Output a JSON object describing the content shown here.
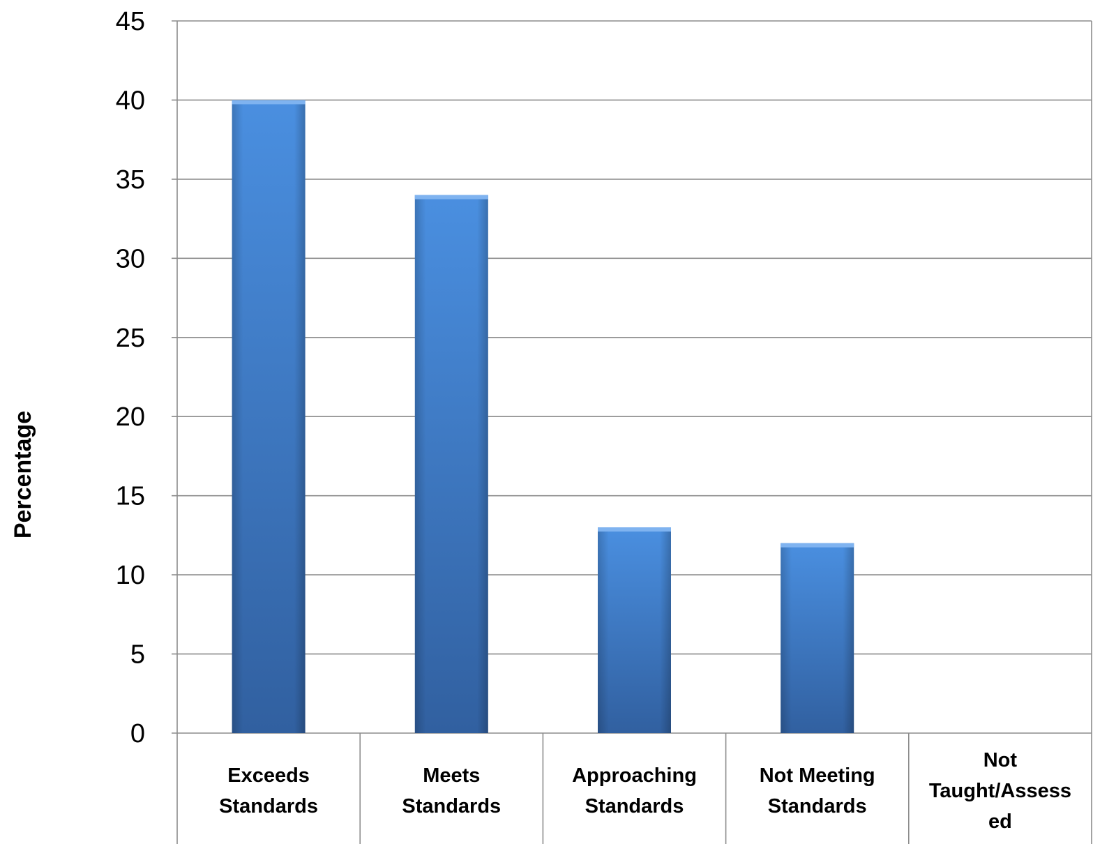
{
  "chart_data": {
    "type": "bar",
    "title": "",
    "xlabel": "",
    "ylabel": "Percentage",
    "ylim": [
      0,
      45
    ],
    "yticks": [
      "0",
      "5",
      "10",
      "15",
      "20",
      "25",
      "30",
      "35",
      "40",
      "45"
    ],
    "grid": true,
    "categories": [
      [
        "Exceeds",
        "Standards"
      ],
      [
        "Meets",
        "Standards"
      ],
      [
        "Approaching",
        "Standards"
      ],
      [
        "Not Meeting",
        "Standards"
      ],
      [
        "Not",
        "Taught/Assess",
        "ed"
      ]
    ],
    "values": [
      40,
      34,
      13,
      12,
      0
    ],
    "bar_color_top": "#4a8fe0",
    "bar_color_bottom": "#3160a0",
    "bar_highlight": "#7fb3f0"
  }
}
